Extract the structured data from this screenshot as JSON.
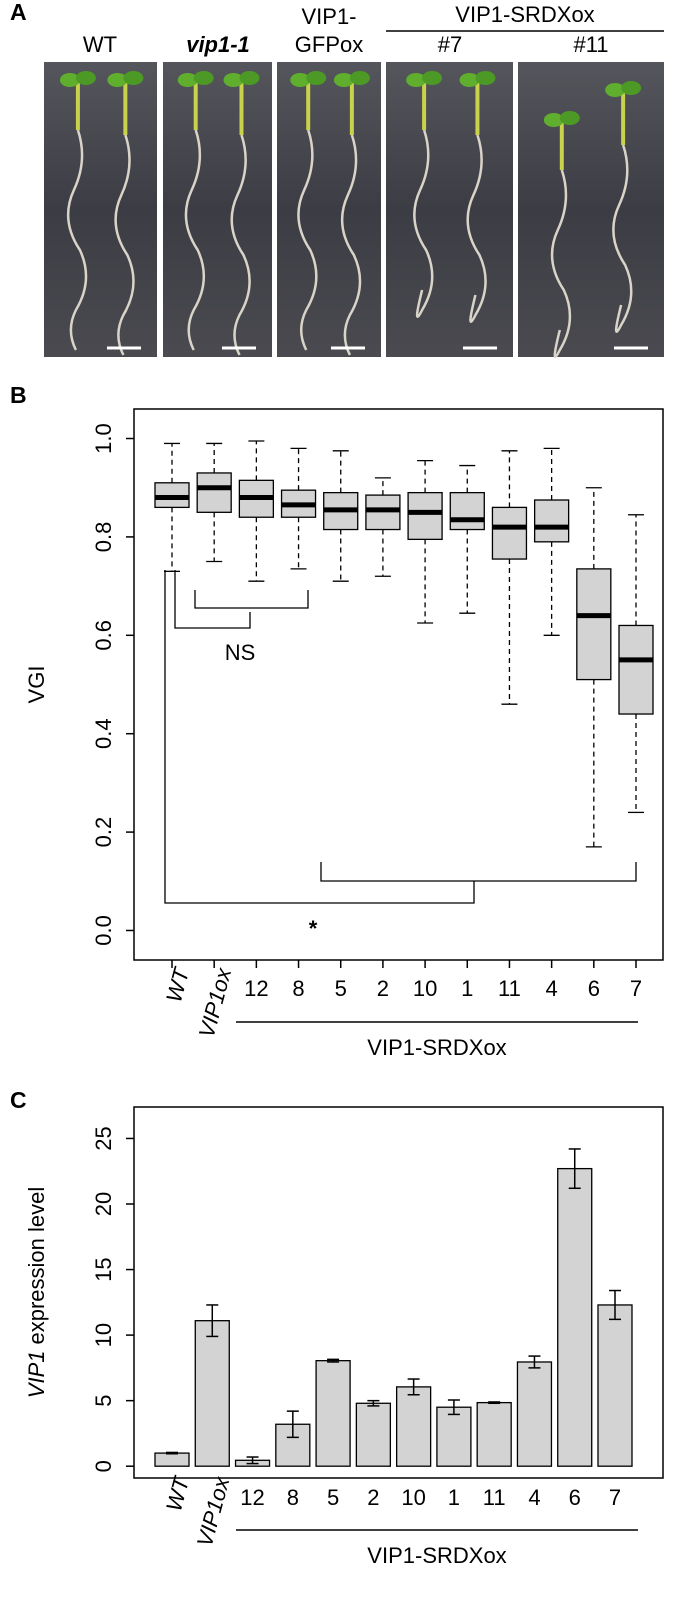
{
  "panel_labels": [
    "A",
    "B",
    "C"
  ],
  "photo_panel": {
    "labels": [
      "WT",
      "vip1-1",
      "VIP1-",
      "GFPox",
      "VIP1-SRDXox",
      "#7",
      "#11"
    ]
  },
  "chart_data": [
    {
      "type": "box",
      "ylabel": "VGI",
      "categories": [
        "WT",
        "VIP1ox",
        "12",
        "8",
        "5",
        "2",
        "10",
        "1",
        "11",
        "4",
        "6",
        "7"
      ],
      "min": [
        0.73,
        0.75,
        0.71,
        0.735,
        0.71,
        0.72,
        0.625,
        0.645,
        0.46,
        0.6,
        0.17,
        0.24
      ],
      "q1": [
        0.86,
        0.85,
        0.84,
        0.84,
        0.815,
        0.815,
        0.795,
        0.815,
        0.755,
        0.79,
        0.51,
        0.44
      ],
      "median": [
        0.88,
        0.9,
        0.88,
        0.865,
        0.855,
        0.855,
        0.85,
        0.835,
        0.82,
        0.82,
        0.64,
        0.55
      ],
      "q3": [
        0.91,
        0.93,
        0.915,
        0.895,
        0.89,
        0.885,
        0.89,
        0.89,
        0.86,
        0.875,
        0.735,
        0.62
      ],
      "max": [
        0.99,
        0.99,
        0.995,
        0.98,
        0.975,
        0.92,
        0.955,
        0.945,
        0.975,
        0.98,
        0.9,
        0.845
      ],
      "color": "#d3d3d3",
      "ylim": [
        -0.06,
        1.06
      ],
      "yticks": [
        {
          "value": 0,
          "label": "0.0"
        },
        {
          "value": 0.2,
          "label": "0.2"
        },
        {
          "value": 0.4,
          "label": "0.4"
        },
        {
          "value": 0.6,
          "label": "0.6"
        },
        {
          "value": 0.8,
          "label": "0.8"
        },
        {
          "value": 1,
          "label": "1.0"
        }
      ],
      "group_label": "VIP1-SRDXox",
      "annotations": [
        "NS",
        "*"
      ]
    },
    {
      "type": "bar",
      "ylabel": {
        "italic": "VIP1",
        "rest": "expression level"
      },
      "categories": [
        "WT",
        "VIP1ox",
        "12",
        "8",
        "5",
        "2",
        "10",
        "1",
        "11",
        "4",
        "6",
        "7"
      ],
      "values": [
        1.0,
        11.1,
        0.45,
        3.2,
        8.05,
        4.8,
        6.05,
        4.5,
        4.85,
        7.95,
        22.7,
        12.3
      ],
      "errors": [
        0.05,
        1.2,
        0.25,
        1.0,
        0.1,
        0.2,
        0.6,
        0.55,
        0.05,
        0.45,
        1.5,
        1.1
      ],
      "color": "#d3d3d3",
      "ylim": [
        -0.9,
        27.4
      ],
      "yticks": [
        0,
        5,
        10,
        15,
        20,
        25
      ],
      "group_label": "VIP1-SRDXox"
    }
  ]
}
